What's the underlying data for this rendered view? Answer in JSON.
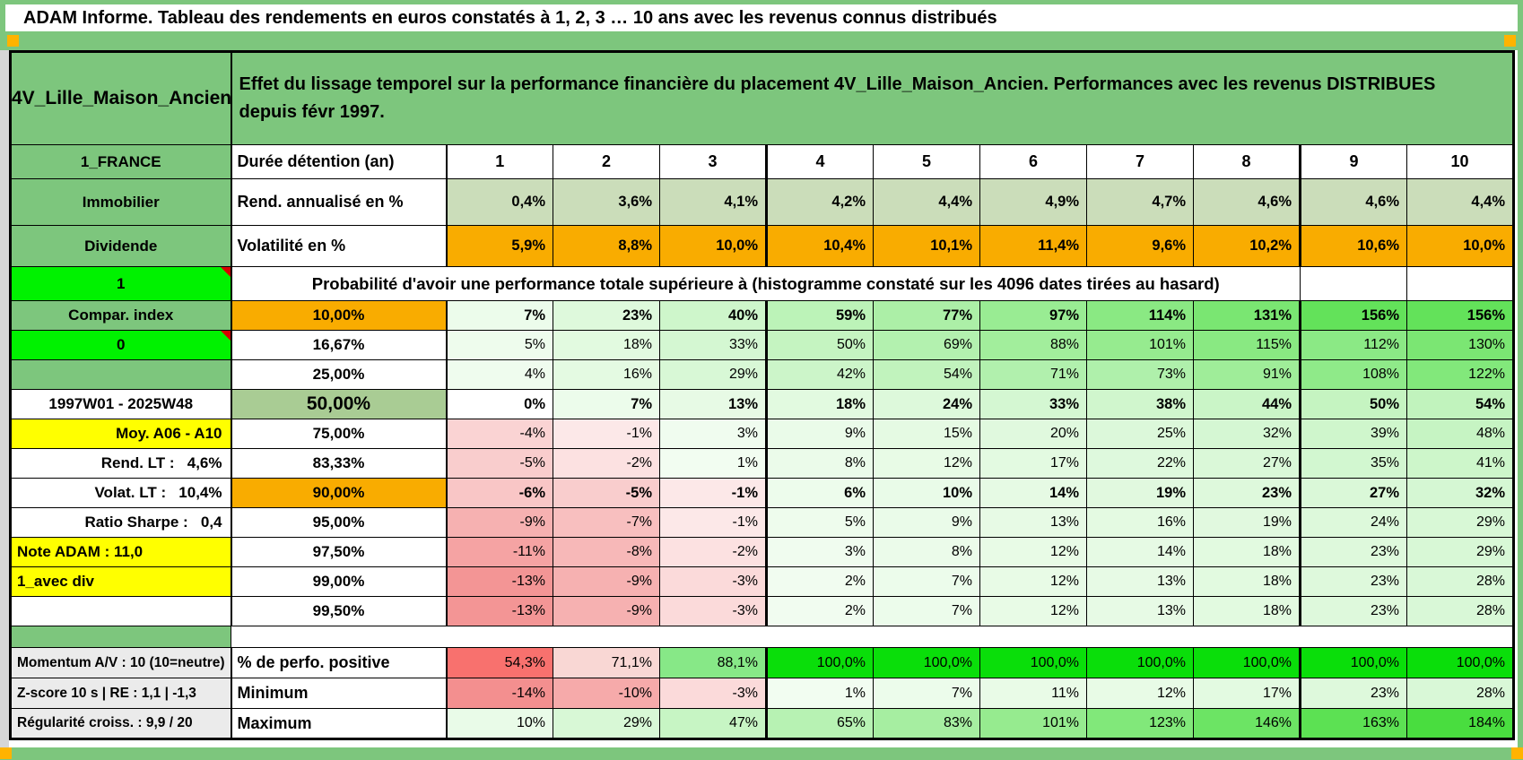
{
  "title": "ADAM Informe. Tableau des rendements en euros constatés à 1, 2, 3 … 10 ans avec les revenus connus distribués",
  "header": {
    "asset_label": "4V_Lille_Maison_Ancien",
    "description": "Effet du lissage temporel sur la performance financière du placement 4V_Lille_Maison_Ancien. Performances avec les revenus DISTRIBUES depuis févr 1997."
  },
  "colors": {
    "frame_green": "#7DC67D",
    "sage": "#CBDDBA",
    "green50": "#A9CC94",
    "orange": "#F9AC00",
    "bright_green": "#00F200",
    "green100": "#0ADE0A",
    "yellow": "#FFFF00",
    "gray_label": "#EBEBEB",
    "red_text": "#FF0000",
    "comment_red": "#D80000",
    "corner_orange": "#FFB300",
    "perfo_red": "#F8716E",
    "perfo_pink": "#F9D7D4",
    "perfo_green": "#87E887"
  },
  "table": {
    "rows": [
      {
        "kind": "duration",
        "left": "1_FRANCE",
        "label": "Durée détention (an)",
        "cells": [
          "1",
          "2",
          "3",
          "4",
          "5",
          "6",
          "7",
          "8",
          "9",
          "10"
        ]
      },
      {
        "kind": "rend",
        "left": "Immobilier",
        "label": "Rend. annualisé en %",
        "cells": [
          "0,4%",
          "3,6%",
          "4,1%",
          "4,2%",
          "4,4%",
          "4,9%",
          "4,7%",
          "4,6%",
          "4,6%",
          "4,4%"
        ]
      },
      {
        "kind": "volat",
        "left": "Dividende",
        "label": "Volatilité en %",
        "cells": [
          "5,9%",
          "8,8%",
          "10,0%",
          "10,4%",
          "10,1%",
          "11,4%",
          "9,6%",
          "10,2%",
          "10,6%",
          "10,0%"
        ]
      },
      {
        "kind": "probheader",
        "left": "1",
        "left_style": "bright",
        "text": "Probabilité d'avoir une performance totale supérieure à (histogramme constaté sur les 4096 dates tirées au hasard)"
      },
      {
        "kind": "value",
        "left": "Compar. index",
        "left_style": "green",
        "th": "10,00%",
        "th_style": "orange",
        "bold": true,
        "cells": [
          "7%",
          "23%",
          "40%",
          "59%",
          "77%",
          "97%",
          "114%",
          "131%",
          "156%",
          "156%"
        ]
      },
      {
        "kind": "value",
        "left": "0",
        "left_style": "bright",
        "th": "16,67%",
        "cells": [
          "5%",
          "18%",
          "33%",
          "50%",
          "69%",
          "88%",
          "101%",
          "115%",
          "112%",
          "130%"
        ]
      },
      {
        "kind": "value",
        "left": "",
        "left_style": "green",
        "th": "25,00%",
        "cells": [
          "4%",
          "16%",
          "29%",
          "42%",
          "54%",
          "71%",
          "73%",
          "91%",
          "108%",
          "122%"
        ]
      },
      {
        "kind": "value",
        "left": "1997W01 - 2025W48",
        "left_style": "redc",
        "th": "50,00%",
        "th_style": "green",
        "bold": true,
        "frame": true,
        "cells": [
          "0%",
          "7%",
          "13%",
          "18%",
          "24%",
          "33%",
          "38%",
          "44%",
          "50%",
          "54%"
        ]
      },
      {
        "kind": "value",
        "left": "Moy. A06 - A10",
        "left_style": "yr",
        "th": "75,00%",
        "cells": [
          "-4%",
          "-1%",
          "3%",
          "9%",
          "15%",
          "20%",
          "25%",
          "32%",
          "39%",
          "48%"
        ]
      },
      {
        "kind": "value",
        "left": "Rend. LT :   4,6%",
        "left_style": "rr",
        "th": "83,33%",
        "cells": [
          "-5%",
          "-2%",
          "1%",
          "8%",
          "12%",
          "17%",
          "22%",
          "27%",
          "35%",
          "41%"
        ]
      },
      {
        "kind": "value",
        "left": "Volat. LT :   10,4%",
        "left_style": "rr",
        "th": "90,00%",
        "th_style": "orange",
        "bold": true,
        "topthick": true,
        "cells": [
          "-6%",
          "-5%",
          "-1%",
          "6%",
          "10%",
          "14%",
          "19%",
          "23%",
          "27%",
          "32%"
        ]
      },
      {
        "kind": "value",
        "left": "Ratio Sharpe :   0,4",
        "left_style": "rr",
        "th": "95,00%",
        "cells": [
          "-9%",
          "-7%",
          "-1%",
          "5%",
          "9%",
          "13%",
          "16%",
          "19%",
          "24%",
          "29%"
        ]
      },
      {
        "kind": "value",
        "left": "Note ADAM : 11,0",
        "left_style": "yl",
        "th": "97,50%",
        "cells": [
          "-11%",
          "-8%",
          "-2%",
          "3%",
          "8%",
          "12%",
          "14%",
          "18%",
          "23%",
          "29%"
        ]
      },
      {
        "kind": "value",
        "left": "1_avec div",
        "left_style": "yl",
        "th": "99,00%",
        "cells": [
          "-13%",
          "-9%",
          "-3%",
          "2%",
          "7%",
          "12%",
          "13%",
          "18%",
          "23%",
          "28%"
        ]
      },
      {
        "kind": "value",
        "left": "",
        "left_style": "white",
        "th": "99,50%",
        "bb": true,
        "cells": [
          "-13%",
          "-9%",
          "-3%",
          "2%",
          "7%",
          "12%",
          "13%",
          "18%",
          "23%",
          "28%"
        ]
      },
      {
        "kind": "gap"
      },
      {
        "kind": "bottom",
        "left": "Momentum A/V : 10 (10=neutre)",
        "label": "% de perfo. positive",
        "scale": "perfo",
        "cells": [
          "54,3%",
          "71,1%",
          "88,1%",
          "100,0%",
          "100,0%",
          "100,0%",
          "100,0%",
          "100,0%",
          "100,0%",
          "100,0%"
        ]
      },
      {
        "kind": "bottom",
        "left": "Z-score 10 s | RE : 1,1 | -1,3",
        "label": "Minimum",
        "scale": "grid",
        "cells": [
          "-14%",
          "-10%",
          "-3%",
          "1%",
          "7%",
          "11%",
          "12%",
          "17%",
          "23%",
          "28%"
        ]
      },
      {
        "kind": "bottom",
        "left": "Régularité croiss. : 9,9 / 20",
        "label": "Maximum",
        "scale": "grid",
        "cells": [
          "10%",
          "29%",
          "47%",
          "65%",
          "83%",
          "101%",
          "123%",
          "146%",
          "163%",
          "184%"
        ]
      }
    ]
  }
}
